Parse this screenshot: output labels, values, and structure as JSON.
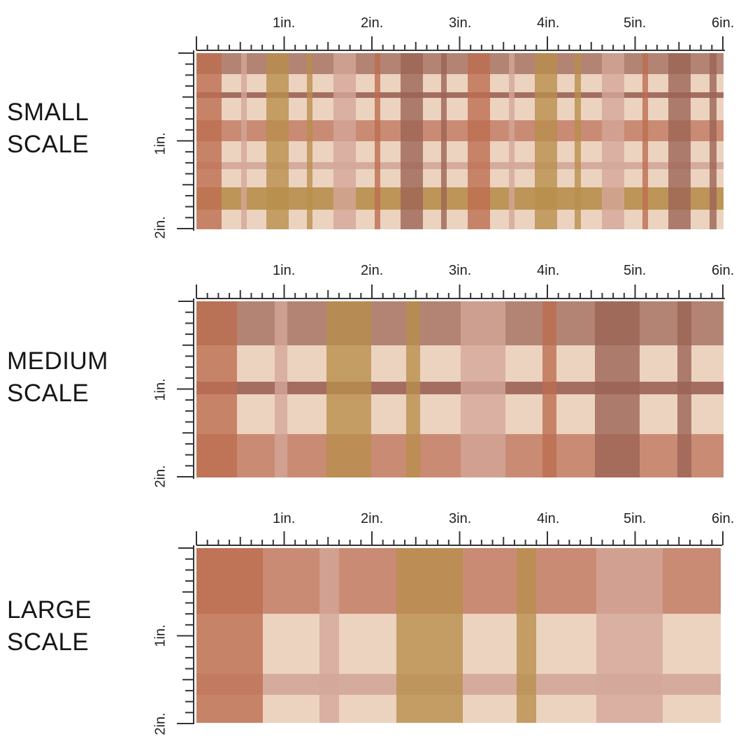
{
  "panels": [
    {
      "id": "small",
      "label_line1": "SMALL",
      "label_line2": "SCALE",
      "top_ruler_labels": [
        "1in.",
        "2in.",
        "3in.",
        "4in.",
        "5in.",
        "6in."
      ],
      "side_ruler_labels": [
        "1in.",
        "2in."
      ]
    },
    {
      "id": "medium",
      "label_line1": "MEDIUM",
      "label_line2": "SCALE",
      "top_ruler_labels": [
        "1in.",
        "2in.",
        "3in.",
        "4in.",
        "5in.",
        "6in."
      ],
      "side_ruler_labels": [
        "1in.",
        "2in."
      ]
    },
    {
      "id": "large",
      "label_line1": "LARGE",
      "label_line2": "SCALE",
      "top_ruler_labels": [
        "1in.",
        "2in.",
        "3in.",
        "4in.",
        "5in.",
        "6in."
      ],
      "side_ruler_labels": [
        "1in.",
        "2in."
      ]
    }
  ],
  "colors": {
    "cream": "#ecd3c0",
    "terracotta": "#c5836a",
    "rust": "#bc6d4f",
    "mauve": "#ad7b6c",
    "dusty_rose": "#d3a69a",
    "mustard": "#b88e4c",
    "brown": "#9b6355",
    "ruler": "#333333"
  }
}
